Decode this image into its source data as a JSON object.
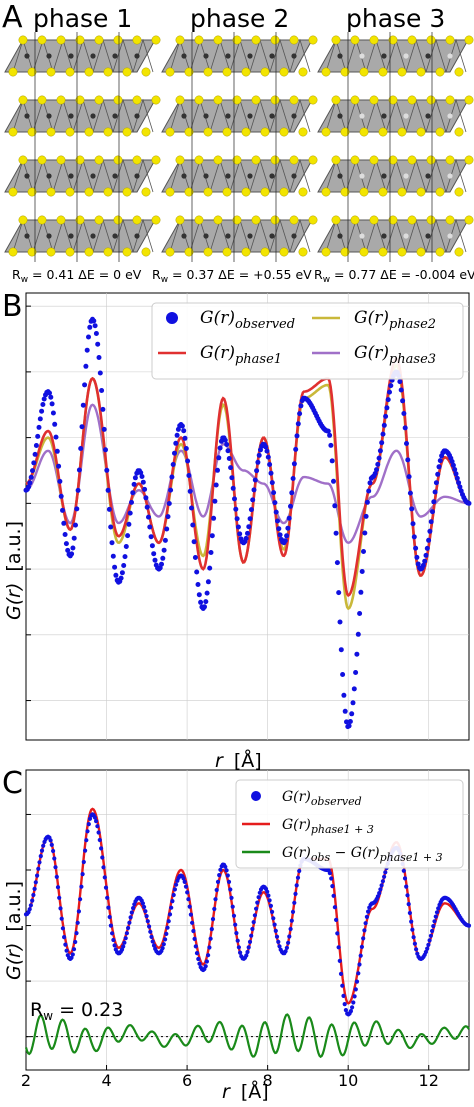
{
  "panel_a": {
    "letter": "A",
    "phases": [
      {
        "title": "phase 1",
        "rw_label": "R",
        "rw_sub": "w",
        "rw_value": " = 0.41",
        "de_label": "ΔE = 0 eV"
      },
      {
        "title": "phase 2",
        "rw_label": "R",
        "rw_sub": "w",
        "rw_value": " = 0.37",
        "de_label": "ΔE = +0.55 eV"
      },
      {
        "title": "phase 3",
        "rw_label": "R",
        "rw_sub": "w",
        "rw_value": " = 0.77",
        "de_label": "ΔE = -0.004 eV"
      }
    ],
    "colors": {
      "atom": "#f2e400",
      "slab": "#a9a9a9",
      "slab_edge": "#555555",
      "metal": "#333333"
    }
  },
  "panel_b": {
    "letter": "B",
    "xlabel_main": "r",
    "xlabel_unit": "[Å]",
    "ylabel_main": "G(r)",
    "ylabel_unit": "[a.u.]",
    "legend": [
      {
        "main": "G(r)",
        "sub": "observed",
        "color": "#1010e0",
        "marker": "dot"
      },
      {
        "main": "G(r)",
        "sub": "phase1",
        "color": "#e03030",
        "marker": "line"
      },
      {
        "main": "G(r)",
        "sub": "phase2",
        "color": "#c9b83a",
        "marker": "line"
      },
      {
        "main": "G(r)",
        "sub": "phase3",
        "color": "#a070c8",
        "marker": "line"
      }
    ]
  },
  "panel_c": {
    "letter": "C",
    "xlabel_main": "r",
    "xlabel_unit": "[Å]",
    "ylabel_main": "G(r)",
    "ylabel_unit": "[a.u.]",
    "rw_text": "R",
    "rw_sub": "w",
    "rw_value": " = 0.23",
    "legend": [
      {
        "main": "G(r)",
        "sub": "observed",
        "color": "#1010e0",
        "marker": "dot"
      },
      {
        "main": "G(r)",
        "sub": "phase1 + 3",
        "color": "#e51c1c",
        "marker": "line"
      },
      {
        "main": "G(r)",
        "sub": "obs",
        "minus": " − G(r)",
        "sub2": "phase1 + 3",
        "color": "#1a8a1a",
        "marker": "line"
      }
    ],
    "xticks": [
      "2",
      "4",
      "6",
      "8",
      "10",
      "12"
    ]
  },
  "chart_data": [
    {
      "type": "line",
      "panel": "B",
      "xlabel": "r [Å]",
      "ylabel": "G(r) [a.u.]",
      "xlim": [
        2,
        13
      ],
      "ylim": [
        -3.6,
        3.2
      ],
      "grid": true,
      "legend_position": "top-right",
      "peaks": [
        {
          "r": 2.0,
          "obs": 0.2,
          "p1": 0.3,
          "p2": 0.3,
          "p3": 0.2
        },
        {
          "r": 2.55,
          "obs": 1.7,
          "p1": 1.1,
          "p2": 1.0,
          "p3": 0.8
        },
        {
          "r": 3.1,
          "obs": -0.8,
          "p1": -0.4,
          "p2": -0.4,
          "p3": -0.3
        },
        {
          "r": 3.65,
          "obs": 2.8,
          "p1": 1.9,
          "p2": 1.9,
          "p3": 1.5
        },
        {
          "r": 4.3,
          "obs": -1.2,
          "p1": -0.5,
          "p2": -0.6,
          "p3": -0.3
        },
        {
          "r": 4.8,
          "obs": 0.5,
          "p1": 0.3,
          "p2": 0.3,
          "p3": 0.2
        },
        {
          "r": 5.3,
          "obs": -1.0,
          "p1": -0.6,
          "p2": -0.6,
          "p3": -0.2
        },
        {
          "r": 5.85,
          "obs": 1.2,
          "p1": 1.0,
          "p2": 0.9,
          "p3": 0.8
        },
        {
          "r": 6.4,
          "obs": -1.6,
          "p1": -1.0,
          "p2": -0.8,
          "p3": -0.2
        },
        {
          "r": 6.9,
          "obs": 1.0,
          "p1": 1.6,
          "p2": 1.5,
          "p3": 0.9
        },
        {
          "r": 7.4,
          "obs": -0.6,
          "p1": -0.9,
          "p2": -0.9,
          "p3": 0.5
        },
        {
          "r": 7.9,
          "obs": 0.9,
          "p1": 1.0,
          "p2": 1.0,
          "p3": 0.3
        },
        {
          "r": 8.4,
          "obs": -0.6,
          "p1": -0.8,
          "p2": -0.7,
          "p3": -0.3
        },
        {
          "r": 8.9,
          "obs": 1.6,
          "p1": 1.7,
          "p2": 1.6,
          "p3": 0.4
        },
        {
          "r": 9.5,
          "obs": 1.1,
          "p1": 1.9,
          "p2": 1.8,
          "p3": 0.3
        },
        {
          "r": 10.0,
          "obs": -3.4,
          "p1": -1.4,
          "p2": -1.6,
          "p3": -0.6
        },
        {
          "r": 10.6,
          "obs": 0.4,
          "p1": 0.3,
          "p2": 0.3,
          "p3": 0.1
        },
        {
          "r": 11.2,
          "obs": 2.0,
          "p1": 2.2,
          "p2": 2.1,
          "p3": 0.8
        },
        {
          "r": 11.8,
          "obs": -1.0,
          "p1": -1.1,
          "p2": -1.1,
          "p3": -0.2
        },
        {
          "r": 12.4,
          "obs": 0.8,
          "p1": 0.7,
          "p2": 0.7,
          "p3": 0.1
        },
        {
          "r": 13.0,
          "obs": 0.0,
          "p1": 0.0,
          "p2": 0.0,
          "p3": 0.0
        }
      ]
    },
    {
      "type": "line",
      "panel": "C",
      "xlabel": "r [Å]",
      "ylabel": "G(r) [a.u.]",
      "xlim": [
        2,
        13
      ],
      "ylim": [
        -2.6,
        2.8
      ],
      "grid": true,
      "legend_position": "top-right",
      "peaks": [
        {
          "r": 2.0,
          "obs": 0.2,
          "fit": 0.2
        },
        {
          "r": 2.55,
          "obs": 1.6,
          "fit": 1.6
        },
        {
          "r": 3.1,
          "obs": -0.6,
          "fit": -0.5
        },
        {
          "r": 3.65,
          "obs": 2.0,
          "fit": 2.1
        },
        {
          "r": 4.3,
          "obs": -0.5,
          "fit": -0.4
        },
        {
          "r": 4.8,
          "obs": 0.5,
          "fit": 0.4
        },
        {
          "r": 5.3,
          "obs": -0.5,
          "fit": -0.4
        },
        {
          "r": 5.85,
          "obs": 0.9,
          "fit": 1.0
        },
        {
          "r": 6.4,
          "obs": -0.8,
          "fit": -0.7
        },
        {
          "r": 6.9,
          "obs": 1.1,
          "fit": 1.0
        },
        {
          "r": 7.4,
          "obs": -0.6,
          "fit": -0.6
        },
        {
          "r": 7.9,
          "obs": 0.7,
          "fit": 0.6
        },
        {
          "r": 8.4,
          "obs": -0.5,
          "fit": -0.5
        },
        {
          "r": 8.9,
          "obs": 1.2,
          "fit": 1.2
        },
        {
          "r": 9.5,
          "obs": 1.0,
          "fit": 1.2
        },
        {
          "r": 10.0,
          "obs": -1.6,
          "fit": -1.4
        },
        {
          "r": 10.6,
          "obs": 0.4,
          "fit": 0.3
        },
        {
          "r": 11.2,
          "obs": 1.4,
          "fit": 1.5
        },
        {
          "r": 11.8,
          "obs": -0.6,
          "fit": -0.6
        },
        {
          "r": 12.4,
          "obs": 0.5,
          "fit": 0.4
        },
        {
          "r": 13.0,
          "obs": 0.0,
          "fit": 0.0
        }
      ],
      "difference_offset": -2.0,
      "difference_amplitude": 0.22
    }
  ]
}
